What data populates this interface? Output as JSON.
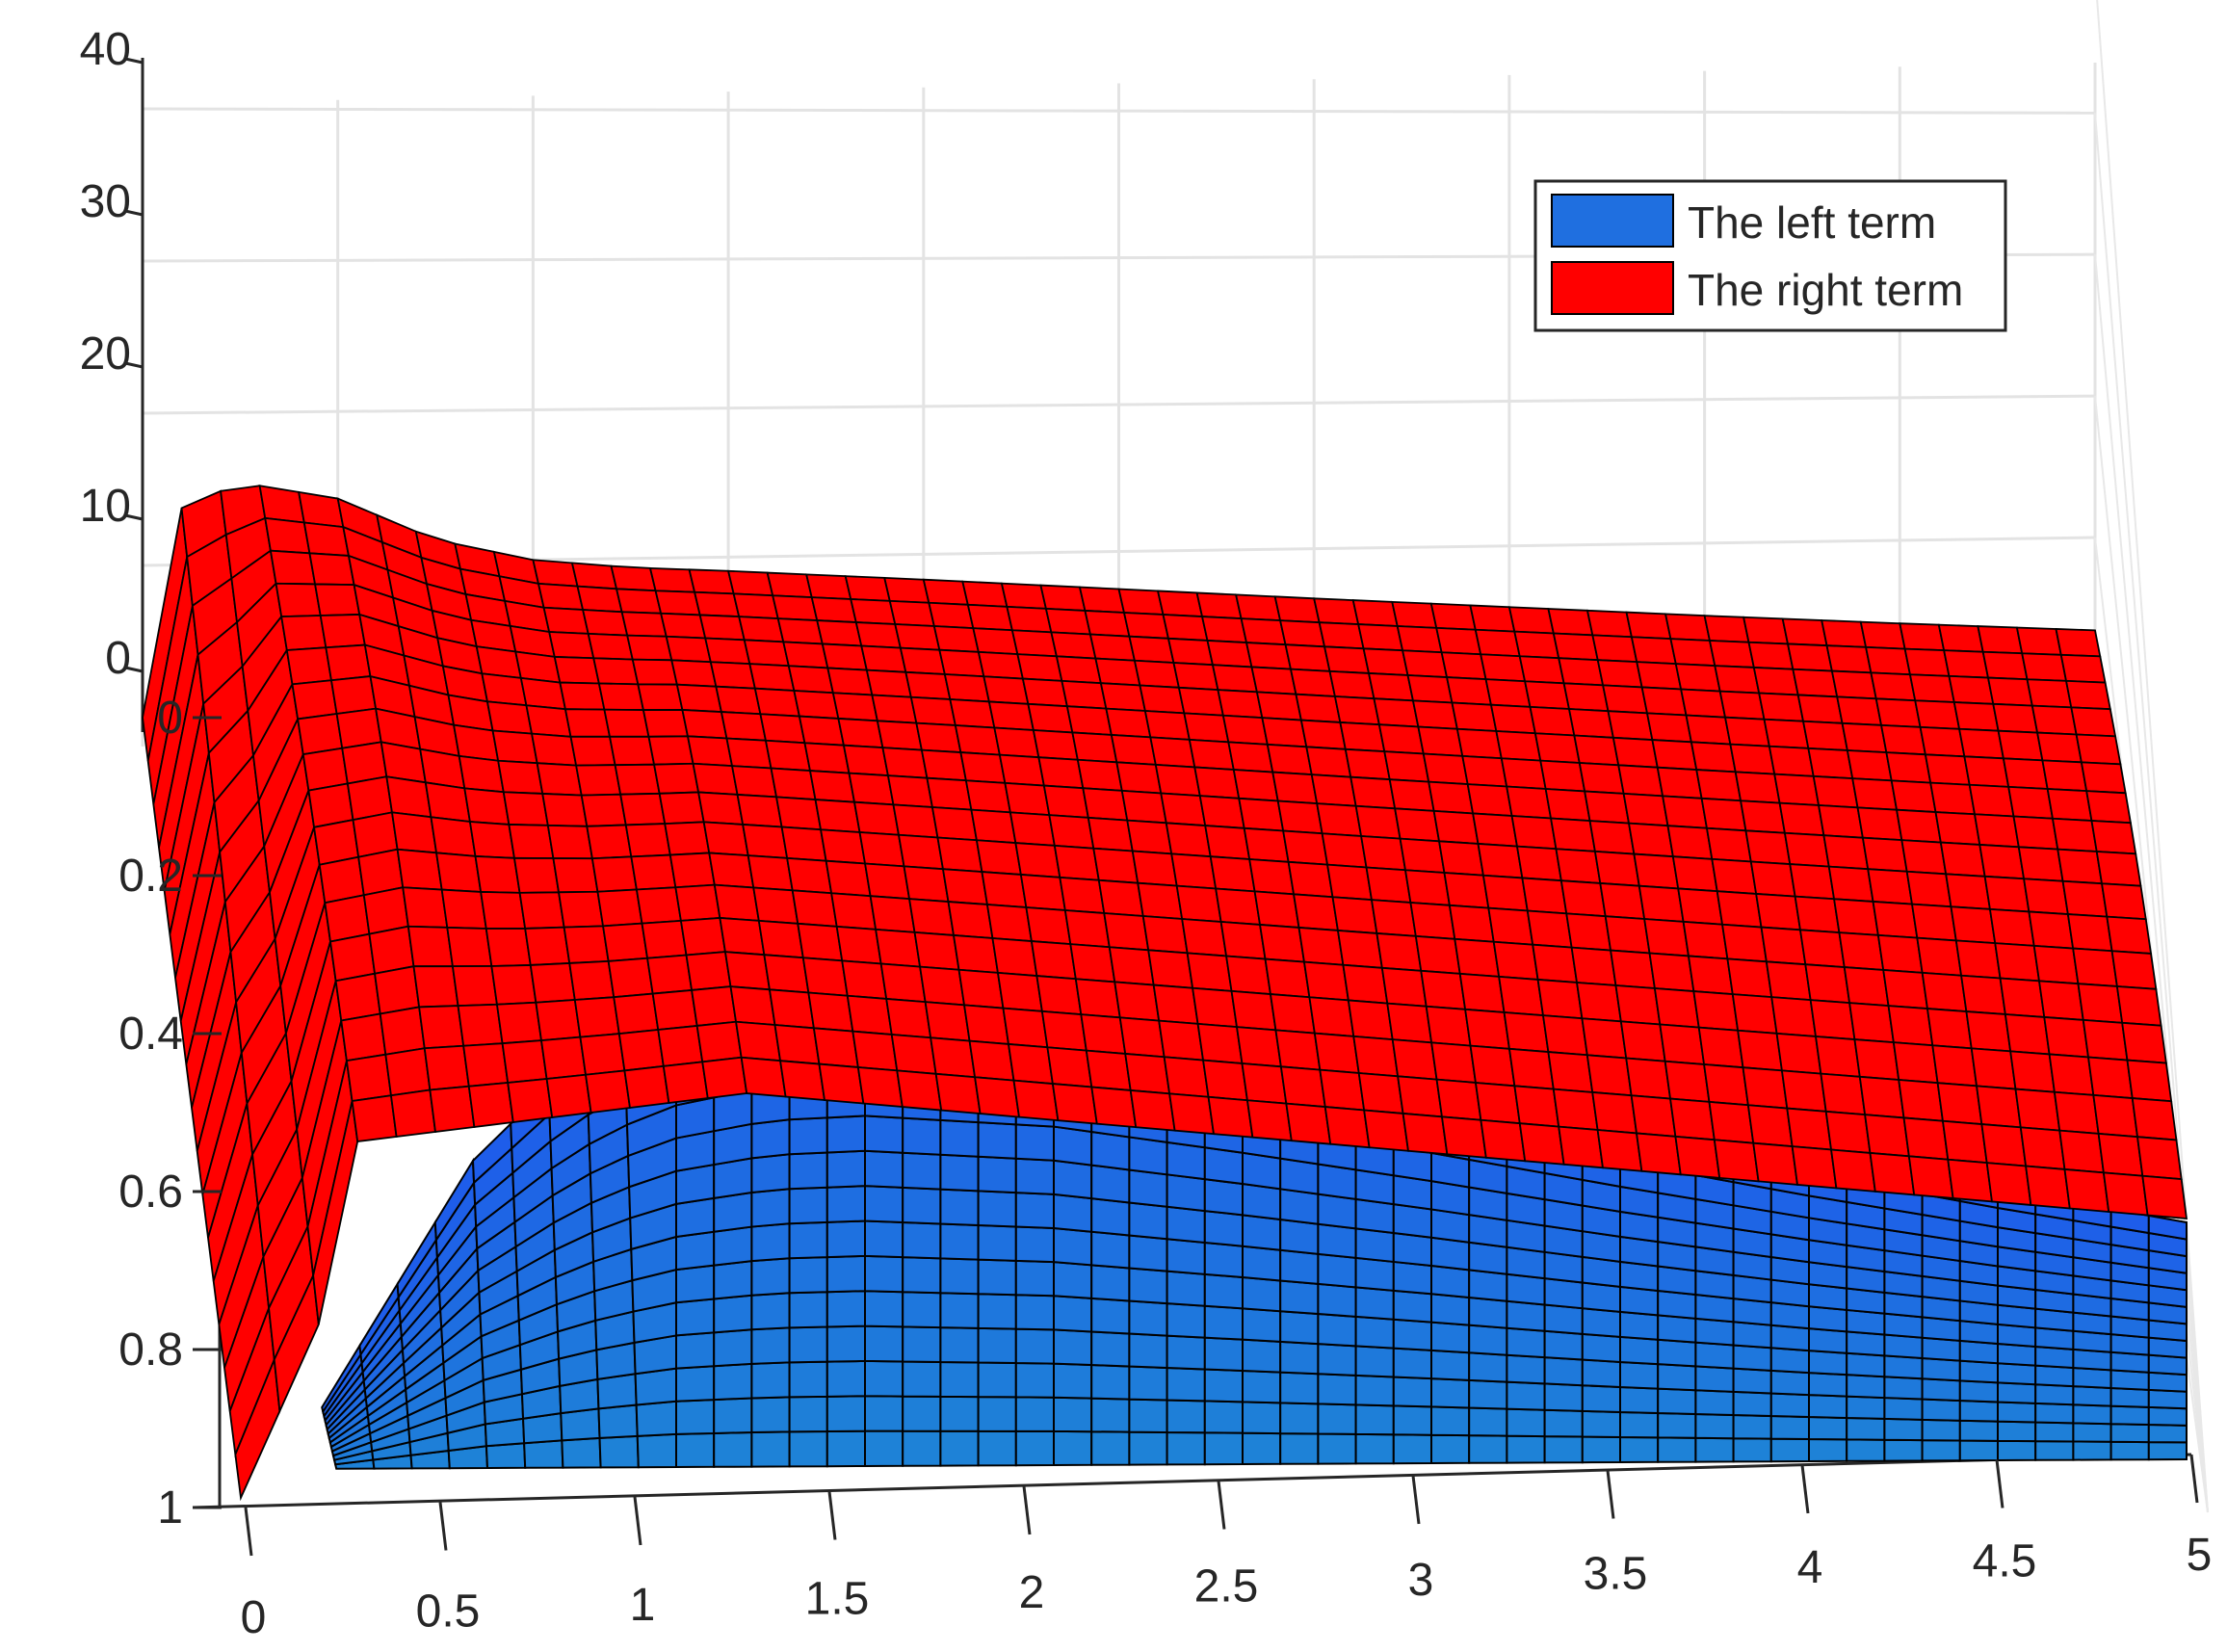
{
  "chart_data": {
    "type": "surface",
    "title": "",
    "xlabel": "",
    "ylabel": "",
    "zlabel": "",
    "x_ticks": [
      "0",
      "0.5",
      "1",
      "1.5",
      "2",
      "2.5",
      "3",
      "3.5",
      "4",
      "4.5",
      "5"
    ],
    "x_range": [
      0,
      5
    ],
    "y_ticks": [
      "0",
      "0.2",
      "0.4",
      "0.6",
      "0.8",
      "1"
    ],
    "y_range": [
      0,
      1
    ],
    "z_ticks": [
      "0",
      "10",
      "20",
      "30",
      "40"
    ],
    "z_range": [
      0,
      40
    ],
    "grid": true,
    "legend_position": "top-right",
    "series": [
      {
        "name": "The left term",
        "color": "#1f6fe0",
        "edge_color": "#000000",
        "x_grid": [
          0.1,
          0.25,
          0.5,
          0.75,
          1,
          1.25,
          1.5,
          1.75,
          2,
          2.25,
          2.5,
          2.75,
          3,
          3.25,
          3.5,
          3.75,
          4,
          4.25,
          4.5,
          4.75,
          5
        ],
        "y_grid": [
          0,
          0.5,
          1
        ],
        "z_description_values": {
          "x": [
            0.1,
            0.25,
            0.5,
            0.75,
            1,
            1.25,
            1.5,
            2,
            2.5,
            3,
            3.5,
            4,
            4.5,
            5
          ],
          "z_max": [
            2,
            5,
            10,
            13,
            15,
            15.8,
            16,
            15.5,
            14.3,
            13,
            11.6,
            10.3,
            9.1,
            8
          ]
        }
      },
      {
        "name": "The right term",
        "color": "#ff0000",
        "edge_color": "#000000",
        "x_grid": [
          0,
          0.25,
          0.5,
          0.75,
          1,
          1.25,
          1.5,
          1.75,
          2,
          2.25,
          2.5,
          2.75,
          3,
          3.25,
          3.5,
          3.75,
          4,
          4.25,
          4.5,
          4.75,
          5
        ],
        "y_grid": [
          0,
          0.5,
          1
        ],
        "z_description_values": {
          "x": [
            0,
            0.1,
            0.25,
            0.5,
            0.75,
            1,
            1.25,
            1.5,
            2,
            2.5,
            3,
            3.5,
            4,
            4.5,
            5
          ],
          "z_max": [
            0,
            25,
            28,
            26,
            21,
            18.5,
            17.5,
            17,
            15.8,
            14.5,
            13.2,
            12,
            10.8,
            9.7,
            8.7
          ]
        }
      }
    ]
  }
}
